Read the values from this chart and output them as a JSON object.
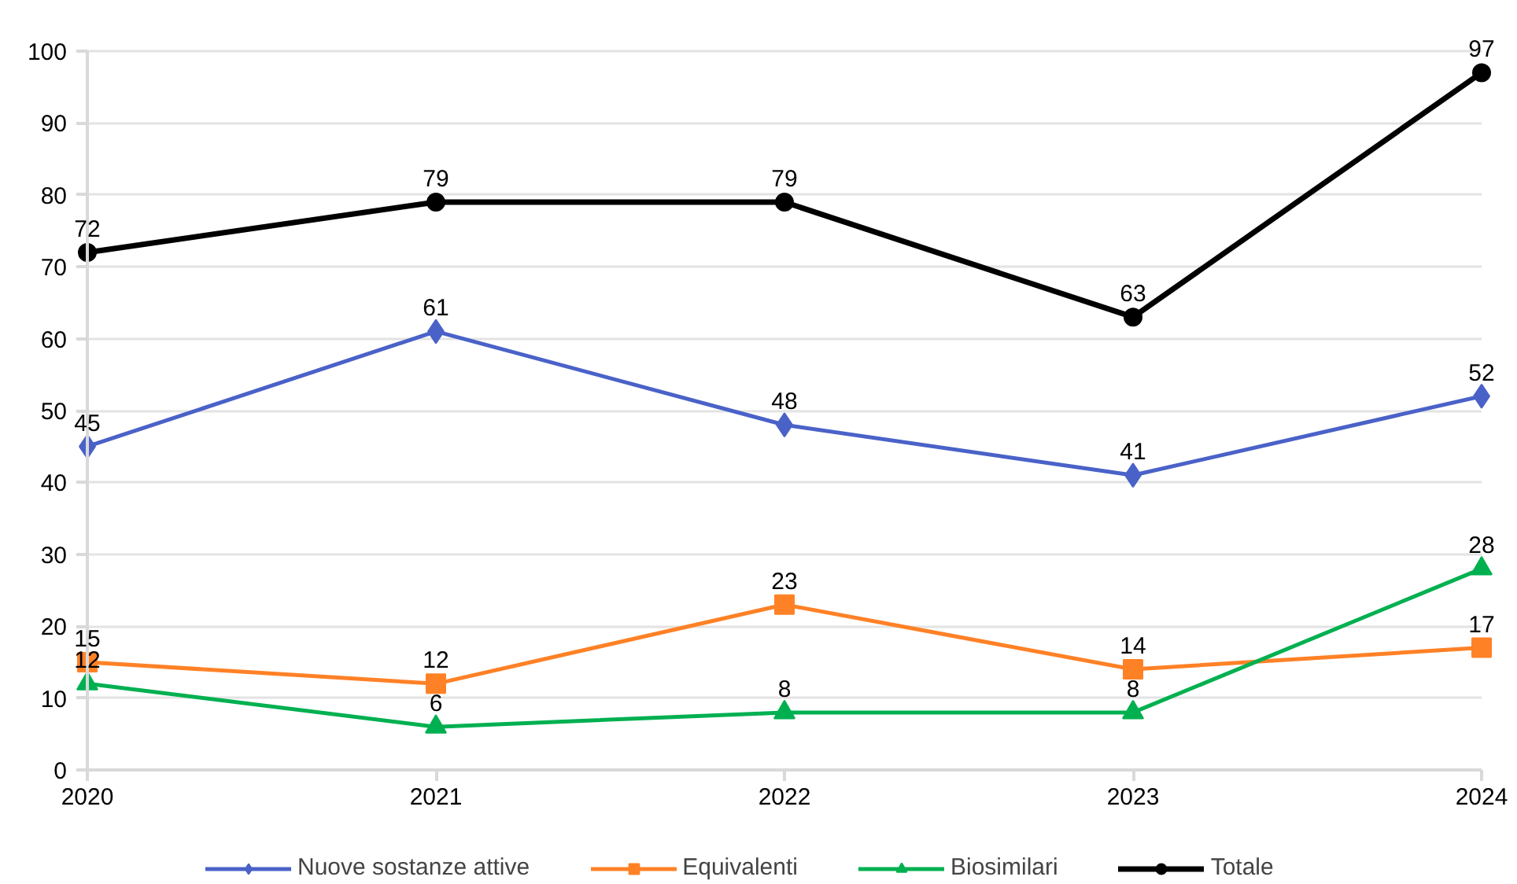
{
  "chart_data": {
    "type": "line",
    "categories": [
      "2020",
      "2021",
      "2022",
      "2023",
      "2024"
    ],
    "series": [
      {
        "name": "Nuove sostanze attive",
        "color": "#4a62c8",
        "marker": "diamond",
        "values": [
          45,
          61,
          48,
          41,
          52
        ]
      },
      {
        "name": "Equivalenti",
        "color": "#ff8126",
        "marker": "square",
        "values": [
          15,
          12,
          23,
          14,
          17
        ]
      },
      {
        "name": "Biosimilari",
        "color": "#00b050",
        "marker": "triangle",
        "values": [
          12,
          6,
          8,
          8,
          28
        ]
      },
      {
        "name": "Totale",
        "color": "#000000",
        "marker": "circle",
        "values": [
          72,
          79,
          79,
          63,
          97
        ]
      }
    ],
    "ylim": [
      0,
      100
    ],
    "yticks": [
      0,
      10,
      20,
      30,
      40,
      50,
      60,
      70,
      80,
      90,
      100
    ],
    "grid": "y",
    "legend": "bottom",
    "data_labels": true,
    "line_style": "solid"
  }
}
